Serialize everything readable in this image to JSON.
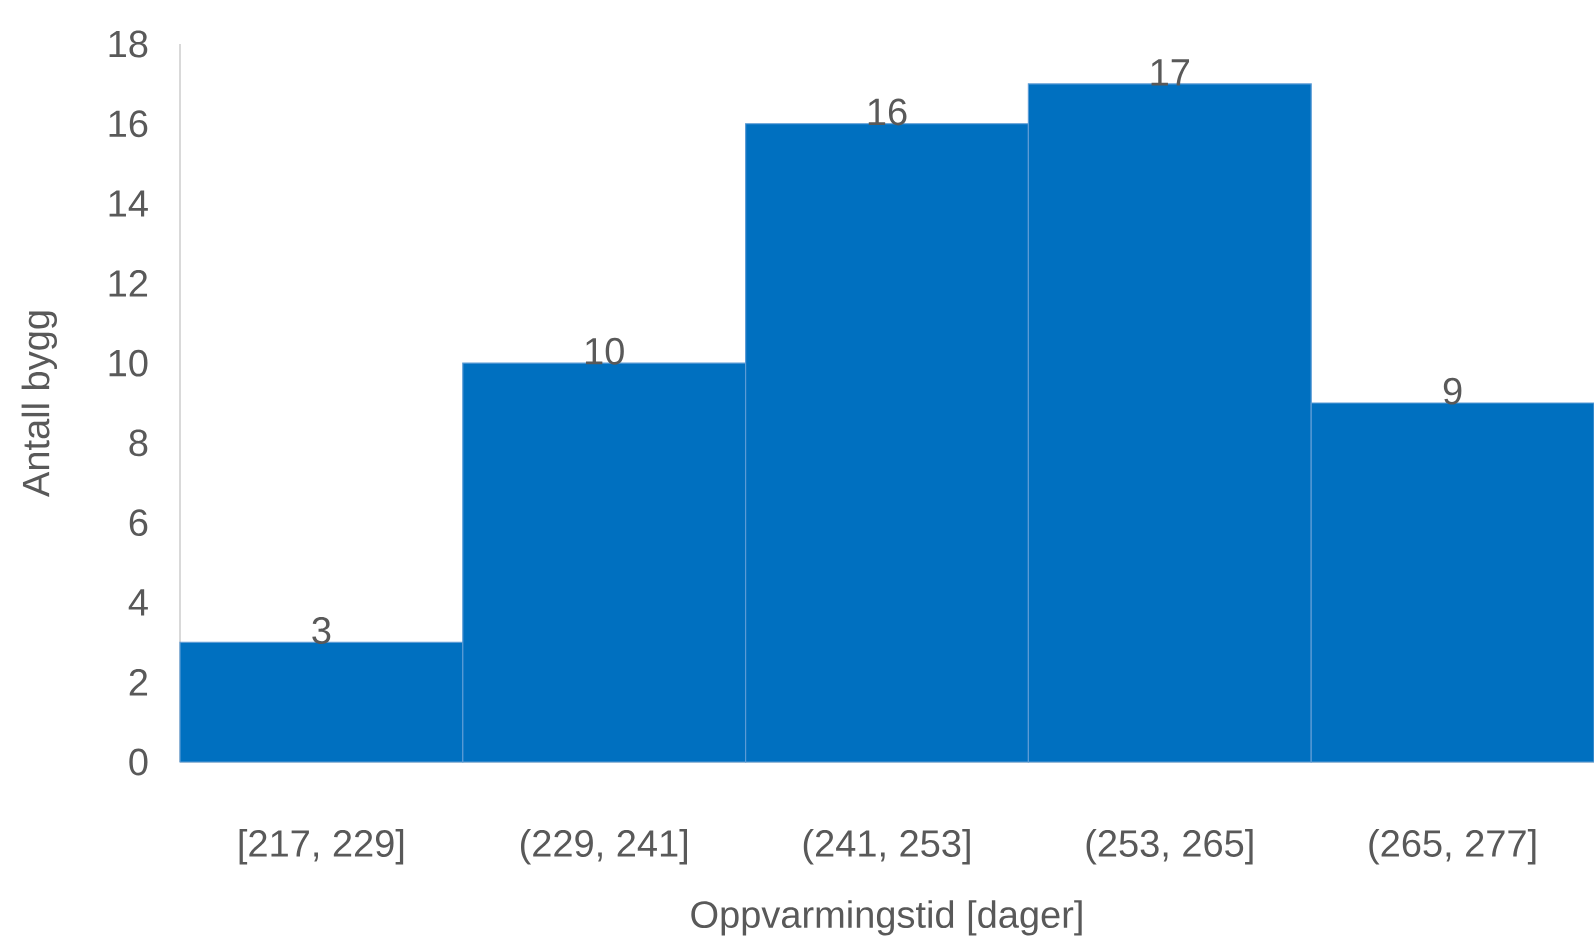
{
  "chart_data": {
    "type": "bar",
    "categories": [
      "[217, 229]",
      "(229, 241]",
      "(241, 253]",
      "(253, 265]",
      "(265, 277]"
    ],
    "values": [
      3,
      10,
      16,
      17,
      9
    ],
    "color": "#0070c0",
    "xlabel": "Oppvarmingstid [dager]",
    "ylabel": "Antall bygg",
    "ylim": [
      0,
      18
    ],
    "yticks": [
      0,
      2,
      4,
      6,
      8,
      10,
      12,
      14,
      16,
      18
    ],
    "data_labels": true
  }
}
